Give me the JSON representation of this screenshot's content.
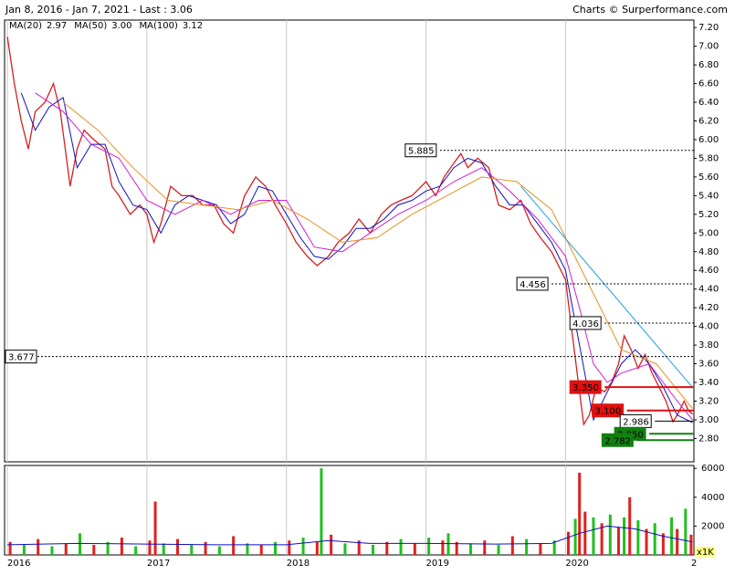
{
  "chart_data": {
    "type": "line",
    "title": "Jan 8, 2016 - Jan 7, 2021 - Last : 3.06",
    "source": "Charts © Surperformance.com",
    "xlim": [
      2015.98,
      2020.92
    ],
    "xticks": [
      2016,
      2017,
      2018,
      2019,
      2020,
      {
        "value": 2021,
        "label": "2"
      }
    ],
    "ylim": [
      2.55,
      7.28
    ],
    "yticks": [
      {
        "value": 2.8,
        "label": "2.80"
      },
      {
        "value": 3.0,
        "label": "3.00"
      },
      {
        "value": 3.2,
        "label": "3.20"
      },
      {
        "value": 3.4,
        "label": "3.40"
      },
      {
        "value": 3.6,
        "label": "3.60"
      },
      {
        "value": 3.8,
        "label": "3.80"
      },
      {
        "value": 4.0,
        "label": "4.00"
      },
      {
        "value": 4.2,
        "label": "4.20"
      },
      {
        "value": 4.4,
        "label": "4.40"
      },
      {
        "value": 4.6,
        "label": "4.60"
      },
      {
        "value": 4.8,
        "label": "4.80"
      },
      {
        "value": 5.0,
        "label": "5.00"
      },
      {
        "value": 5.2,
        "label": "5.20"
      },
      {
        "value": 5.4,
        "label": "5.40"
      },
      {
        "value": 5.6,
        "label": "5.60"
      },
      {
        "value": 5.8,
        "label": "5.80"
      },
      {
        "value": 6.0,
        "label": "6.00"
      },
      {
        "value": 6.2,
        "label": "6.20"
      },
      {
        "value": 6.4,
        "label": "6.40"
      },
      {
        "value": 6.6,
        "label": "6.60"
      },
      {
        "value": 6.8,
        "label": "6.80"
      },
      {
        "value": 7.0,
        "label": "7.00"
      },
      {
        "value": 7.2,
        "label": "7.20"
      }
    ],
    "grid": true,
    "price": {
      "color": "#d42020",
      "x": [
        2016.0,
        2016.05,
        2016.1,
        2016.15,
        2016.2,
        2016.27,
        2016.33,
        2016.38,
        2016.45,
        2016.5,
        2016.55,
        2016.62,
        2016.7,
        2016.75,
        2016.8,
        2016.88,
        2016.95,
        2017.0,
        2017.05,
        2017.1,
        2017.17,
        2017.25,
        2017.33,
        2017.4,
        2017.48,
        2017.55,
        2017.62,
        2017.7,
        2017.78,
        2017.85,
        2017.92,
        2018.0,
        2018.07,
        2018.15,
        2018.22,
        2018.3,
        2018.37,
        2018.45,
        2018.52,
        2018.6,
        2018.68,
        2018.75,
        2018.82,
        2018.9,
        2019.0,
        2019.07,
        2019.13,
        2019.2,
        2019.25,
        2019.3,
        2019.37,
        2019.45,
        2019.52,
        2019.6,
        2019.68,
        2019.75,
        2019.82,
        2019.9,
        2020.0,
        2020.05,
        2020.1,
        2020.13,
        2020.17,
        2020.22,
        2020.28,
        2020.33,
        2020.38,
        2020.42,
        2020.47,
        2020.52,
        2020.57,
        2020.62,
        2020.67,
        2020.72,
        2020.77,
        2020.8,
        2020.85,
        2020.88,
        2020.91
      ],
      "values": [
        7.1,
        6.6,
        6.2,
        5.9,
        6.3,
        6.4,
        6.6,
        6.3,
        5.5,
        5.9,
        6.1,
        6.0,
        5.9,
        5.5,
        5.4,
        5.2,
        5.3,
        5.2,
        4.9,
        5.1,
        5.5,
        5.4,
        5.4,
        5.3,
        5.3,
        5.1,
        5.0,
        5.4,
        5.6,
        5.5,
        5.3,
        5.1,
        4.9,
        4.75,
        4.65,
        4.75,
        4.9,
        5.0,
        5.15,
        5.0,
        5.2,
        5.3,
        5.35,
        5.4,
        5.55,
        5.4,
        5.6,
        5.75,
        5.85,
        5.7,
        5.8,
        5.7,
        5.3,
        5.25,
        5.35,
        5.1,
        4.95,
        4.8,
        4.5,
        3.9,
        3.3,
        2.95,
        3.05,
        3.35,
        3.3,
        3.4,
        3.6,
        3.9,
        3.75,
        3.55,
        3.7,
        3.5,
        3.35,
        3.2,
        2.98,
        3.05,
        3.2,
        3.1,
        3.06
      ]
    },
    "series": [
      {
        "name": "MA(20)",
        "legend_value": "2.97",
        "color": "#1010c0",
        "x": [
          2016.1,
          2016.2,
          2016.3,
          2016.4,
          2016.5,
          2016.6,
          2016.7,
          2016.8,
          2016.9,
          2017.0,
          2017.1,
          2017.2,
          2017.3,
          2017.4,
          2017.5,
          2017.6,
          2017.7,
          2017.8,
          2017.9,
          2018.0,
          2018.1,
          2018.2,
          2018.3,
          2018.4,
          2018.5,
          2018.6,
          2018.7,
          2018.8,
          2018.9,
          2019.0,
          2019.1,
          2019.2,
          2019.3,
          2019.4,
          2019.5,
          2019.6,
          2019.7,
          2019.8,
          2019.9,
          2020.0,
          2020.1,
          2020.2,
          2020.3,
          2020.4,
          2020.5,
          2020.6,
          2020.7,
          2020.8,
          2020.91
        ],
        "values": [
          6.5,
          6.1,
          6.35,
          6.45,
          5.7,
          5.95,
          5.95,
          5.55,
          5.3,
          5.25,
          5.0,
          5.3,
          5.4,
          5.35,
          5.3,
          5.1,
          5.2,
          5.5,
          5.45,
          5.2,
          4.95,
          4.75,
          4.72,
          4.85,
          5.05,
          5.05,
          5.15,
          5.3,
          5.35,
          5.45,
          5.5,
          5.7,
          5.8,
          5.75,
          5.5,
          5.3,
          5.3,
          5.1,
          4.9,
          4.6,
          3.8,
          3.0,
          3.3,
          3.6,
          3.75,
          3.6,
          3.35,
          3.05,
          2.97
        ]
      },
      {
        "name": "MA(50)",
        "legend_value": "3.00",
        "color": "#d020d0",
        "x": [
          2016.2,
          2016.4,
          2016.6,
          2016.8,
          2017.0,
          2017.2,
          2017.4,
          2017.6,
          2017.8,
          2018.0,
          2018.2,
          2018.4,
          2018.6,
          2018.8,
          2019.0,
          2019.2,
          2019.4,
          2019.6,
          2019.8,
          2020.0,
          2020.1,
          2020.2,
          2020.3,
          2020.4,
          2020.6,
          2020.8,
          2020.91
        ],
        "values": [
          6.5,
          6.3,
          5.95,
          5.8,
          5.35,
          5.2,
          5.35,
          5.2,
          5.35,
          5.35,
          4.85,
          4.8,
          5.0,
          5.2,
          5.35,
          5.55,
          5.7,
          5.45,
          5.15,
          4.75,
          4.2,
          3.6,
          3.4,
          3.5,
          3.6,
          3.2,
          3.0
        ]
      },
      {
        "name": "MA(100)",
        "legend_value": "3.12",
        "color": "#e89020",
        "x": [
          2016.4,
          2016.65,
          2016.9,
          2017.15,
          2017.4,
          2017.65,
          2017.9,
          2018.15,
          2018.4,
          2018.65,
          2018.9,
          2019.15,
          2019.4,
          2019.65,
          2019.9,
          2020.15,
          2020.4,
          2020.65,
          2020.91
        ],
        "values": [
          6.4,
          6.1,
          5.7,
          5.35,
          5.3,
          5.25,
          5.35,
          5.15,
          4.9,
          4.95,
          5.2,
          5.4,
          5.6,
          5.55,
          5.25,
          4.5,
          3.75,
          3.6,
          3.12
        ]
      }
    ],
    "trendline": {
      "color": "#20a0e0",
      "x": [
        2019.68,
        2020.92
      ],
      "values": [
        5.5,
        3.33
      ]
    },
    "levels": [
      {
        "value": 5.885,
        "label": "5.885",
        "start": 2019.1,
        "color": "#000000",
        "style": "dashed"
      },
      {
        "value": 4.456,
        "label": "4.456",
        "start": 2019.9,
        "color": "#000000",
        "style": "dashed"
      },
      {
        "value": 4.036,
        "label": "4.036",
        "start": 2020.28,
        "color": "#000000",
        "style": "dashed"
      },
      {
        "value": 3.677,
        "label": "3.677",
        "start": 2015.98,
        "color": "#000000",
        "style": "dashed"
      },
      {
        "value": 3.35,
        "label": "3.350",
        "start": 2020.28,
        "color": "#e01010",
        "style": "solid"
      },
      {
        "value": 3.1,
        "label": "3.100",
        "start": 2020.44,
        "color": "#e01010",
        "style": "solid"
      },
      {
        "value": 2.986,
        "label": "2.986",
        "start": 2020.64,
        "color": "#000000",
        "style": "box"
      },
      {
        "value": 2.85,
        "label": "2.850",
        "start": 2020.6,
        "color": "#108010",
        "style": "solid"
      },
      {
        "value": 2.782,
        "label": "2.782",
        "start": 2020.51,
        "color": "#108010",
        "style": "solid"
      }
    ],
    "volume": {
      "unit_label": "x1K",
      "ylim": [
        0,
        6200
      ],
      "yticks": [
        2000,
        4000,
        6000
      ],
      "x": [
        2016.02,
        2016.12,
        2016.22,
        2016.32,
        2016.42,
        2016.52,
        2016.62,
        2016.72,
        2016.82,
        2016.92,
        2017.02,
        2017.06,
        2017.12,
        2017.22,
        2017.32,
        2017.42,
        2017.52,
        2017.62,
        2017.72,
        2017.82,
        2017.92,
        2018.02,
        2018.12,
        2018.22,
        2018.25,
        2018.32,
        2018.42,
        2018.52,
        2018.62,
        2018.72,
        2018.82,
        2018.92,
        2019.02,
        2019.12,
        2019.16,
        2019.22,
        2019.32,
        2019.42,
        2019.52,
        2019.62,
        2019.72,
        2019.82,
        2019.92,
        2020.02,
        2020.07,
        2020.1,
        2020.14,
        2020.2,
        2020.26,
        2020.32,
        2020.38,
        2020.42,
        2020.46,
        2020.52,
        2020.58,
        2020.64,
        2020.7,
        2020.76,
        2020.8,
        2020.86,
        2020.9
      ],
      "values": [
        900,
        700,
        1100,
        600,
        800,
        1500,
        700,
        900,
        1200,
        600,
        1000,
        3700,
        800,
        1100,
        700,
        900,
        600,
        1300,
        800,
        700,
        900,
        1000,
        1200,
        900,
        6000,
        1400,
        800,
        1000,
        700,
        900,
        1100,
        800,
        1200,
        1000,
        1500,
        900,
        800,
        1000,
        700,
        1300,
        1100,
        800,
        1000,
        1600,
        2500,
        5700,
        3000,
        2600,
        2200,
        2800,
        1900,
        2600,
        4000,
        2400,
        1800,
        2200,
        1500,
        2600,
        1800,
        3200,
        1400
      ],
      "colors": [
        "#e02020",
        "#20c020",
        "#e02020",
        "#20c020",
        "#e02020",
        "#20c020",
        "#e02020",
        "#20c020",
        "#e02020",
        "#20c020",
        "#e02020",
        "#e02020",
        "#20c020",
        "#e02020",
        "#20c020",
        "#e02020",
        "#20c020",
        "#e02020",
        "#20c020",
        "#e02020",
        "#20c020",
        "#e02020",
        "#20c020",
        "#e02020",
        "#20c020",
        "#e02020",
        "#20c020",
        "#e02020",
        "#20c020",
        "#e02020",
        "#20c020",
        "#e02020",
        "#20c020",
        "#e02020",
        "#20c020",
        "#e02020",
        "#20c020",
        "#e02020",
        "#20c020",
        "#e02020",
        "#20c020",
        "#e02020",
        "#20c020",
        "#e02020",
        "#20c020",
        "#e02020",
        "#e02020",
        "#20c020",
        "#e02020",
        "#20c020",
        "#e02020",
        "#20c020",
        "#e02020",
        "#20c020",
        "#e02020",
        "#20c020",
        "#e02020",
        "#20c020",
        "#e02020",
        "#20c020",
        "#e02020"
      ],
      "ma": {
        "color": "#1010c0",
        "x": [
          2016.0,
          2016.5,
          2017.0,
          2017.5,
          2018.0,
          2018.3,
          2018.6,
          2019.0,
          2019.5,
          2019.9,
          2020.1,
          2020.3,
          2020.5,
          2020.7,
          2020.91
        ],
        "values": [
          700,
          800,
          750,
          700,
          700,
          1000,
          800,
          800,
          750,
          800,
          1500,
          2000,
          1800,
          1300,
          900
        ]
      }
    }
  }
}
